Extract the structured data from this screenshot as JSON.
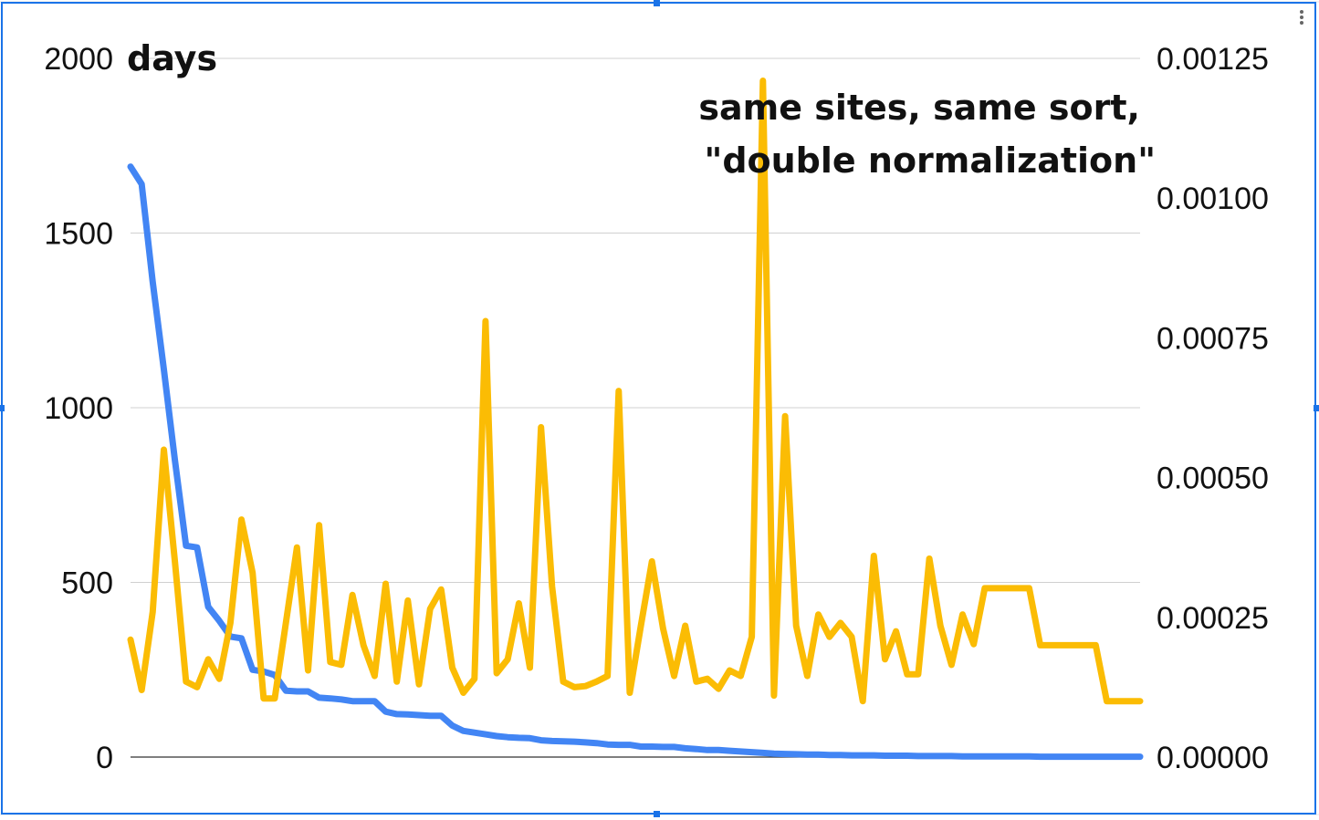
{
  "chart_data": {
    "type": "line",
    "title_lines": [
      "same sites, same sort,",
      "\"double normalization\""
    ],
    "ylabel_left": "days",
    "yticks_left": [
      "0",
      "500",
      "1000",
      "1500",
      "2000"
    ],
    "yticks_right": [
      "0.00000",
      "0.00025",
      "0.00050",
      "0.00075",
      "0.00100",
      "0.00125"
    ],
    "ylim_left": [
      0,
      2000
    ],
    "ylim_right": [
      0,
      0.00125
    ],
    "grid": true,
    "legend": "none",
    "x": [
      1,
      2,
      3,
      4,
      5,
      6,
      7,
      8,
      9,
      10,
      11,
      12,
      13,
      14,
      15,
      16,
      17,
      18,
      19,
      20,
      21,
      22,
      23,
      24,
      25,
      26,
      27,
      28,
      29,
      30,
      31,
      32,
      33,
      34,
      35,
      36,
      37,
      38,
      39,
      40,
      41,
      42,
      43,
      44,
      45,
      46,
      47,
      48,
      49,
      50,
      51,
      52,
      53,
      54,
      55,
      56,
      57,
      58,
      59,
      60,
      61,
      62,
      63,
      64,
      65,
      66,
      67,
      68,
      69,
      70,
      71,
      72,
      73,
      74,
      75,
      76,
      77,
      78,
      79,
      80,
      81,
      82,
      83,
      84,
      85,
      86,
      87,
      88,
      89,
      90,
      91,
      92
    ],
    "series": [
      {
        "axis": "left",
        "color": "#4285f4",
        "values": [
          1690,
          1640,
          1360,
          1110,
          850,
          605,
          600,
          430,
          390,
          345,
          340,
          250,
          245,
          235,
          190,
          188,
          188,
          170,
          168,
          165,
          160,
          160,
          160,
          130,
          123,
          122,
          120,
          118,
          118,
          90,
          75,
          70,
          65,
          60,
          57,
          55,
          54,
          48,
          46,
          45,
          44,
          42,
          40,
          36,
          35,
          35,
          30,
          30,
          29,
          29,
          25,
          23,
          20,
          20,
          18,
          16,
          14,
          12,
          10,
          9,
          8,
          7,
          7,
          6,
          6,
          5,
          5,
          5,
          4,
          4,
          4,
          3,
          3,
          3,
          3,
          2,
          2,
          2,
          2,
          2,
          2,
          2,
          1,
          1,
          1,
          1,
          1,
          1,
          1,
          1,
          1,
          1
        ]
      },
      {
        "axis": "right",
        "color": "#fbbc04",
        "values": [
          0.00021,
          0.00012,
          0.00026,
          0.00055,
          0.00035,
          0.000135,
          0.000125,
          0.000175,
          0.00014,
          0.00024,
          0.000425,
          0.00033,
          0.000105,
          0.000105,
          0.00024,
          0.000375,
          0.000155,
          0.000415,
          0.00017,
          0.000165,
          0.00029,
          0.0002,
          0.000145,
          0.00031,
          0.000135,
          0.00028,
          0.00013,
          0.000265,
          0.0003,
          0.00016,
          0.000115,
          0.00014,
          0.00078,
          0.00015,
          0.000175,
          0.000275,
          0.00016,
          0.00059,
          0.000305,
          0.000135,
          0.000125,
          0.000127,
          0.000135,
          0.000145,
          0.000655,
          0.000115,
          0.000235,
          0.00035,
          0.00023,
          0.000145,
          0.000235,
          0.000135,
          0.00014,
          0.000122,
          0.000155,
          0.000145,
          0.000215,
          0.00121,
          0.00011,
          0.00061,
          0.000235,
          0.000145,
          0.000255,
          0.000215,
          0.00024,
          0.000215,
          0.0001,
          0.00036,
          0.000175,
          0.000225,
          0.000148,
          0.000148,
          0.000355,
          0.000235,
          0.000165,
          0.000255,
          0.000202,
          0.000302,
          0.000302,
          0.000302,
          0.000302,
          0.000302,
          0.0002,
          0.0002,
          0.0002,
          0.0002,
          0.0002,
          0.0002,
          0.0001,
          0.0001,
          0.0001,
          0.0001
        ]
      }
    ]
  }
}
